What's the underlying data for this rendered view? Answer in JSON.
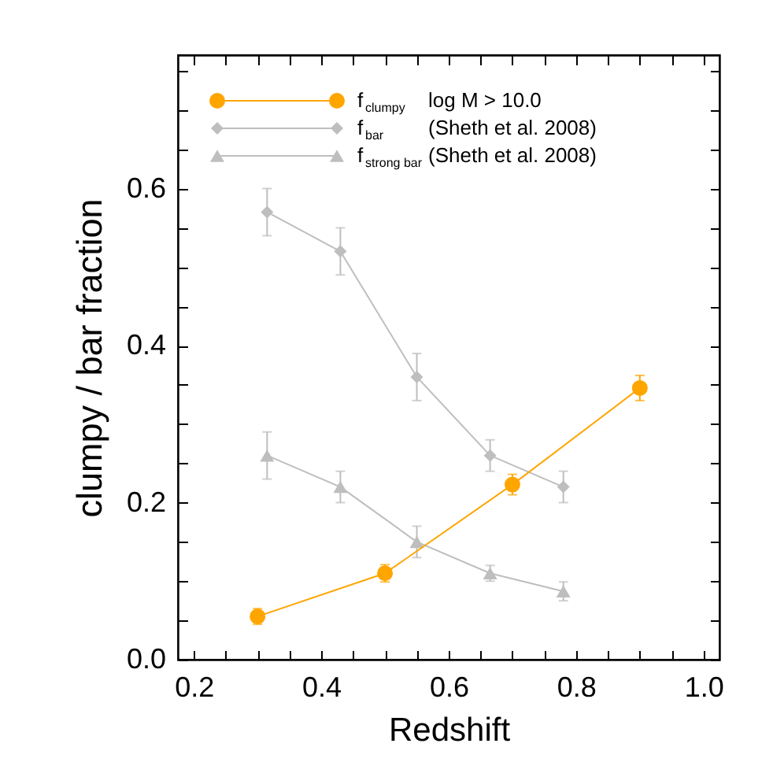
{
  "chart_data": {
    "type": "line",
    "xlabel": "Redshift",
    "ylabel": "clumpy / bar fraction",
    "xlim": [
      0.175,
      1.025
    ],
    "ylim": [
      0,
      0.77
    ],
    "xticks": [
      0.2,
      {
        "value": 0.25,
        "label": null
      },
      {
        "value": 0.3,
        "label": null
      },
      {
        "value": 0.35,
        "label": null
      },
      0.4,
      {
        "value": 0.45,
        "label": null
      },
      {
        "value": 0.5,
        "label": null
      },
      {
        "value": 0.55,
        "label": null
      },
      0.6,
      {
        "value": 0.65,
        "label": null
      },
      {
        "value": 0.7,
        "label": null
      },
      {
        "value": 0.75,
        "label": null
      },
      0.8,
      {
        "value": 0.85,
        "label": null
      },
      {
        "value": 0.9,
        "label": null
      },
      {
        "value": 0.95,
        "label": null
      },
      {
        "value": 1,
        "label": "1.0"
      }
    ],
    "yticks": [
      {
        "value": 0,
        "label": "0.0"
      },
      {
        "value": 0.05,
        "label": null
      },
      {
        "value": 0.1,
        "label": null
      },
      {
        "value": 0.15,
        "label": null
      },
      0.2,
      {
        "value": 0.25,
        "label": null
      },
      {
        "value": 0.3,
        "label": null
      },
      {
        "value": 0.35,
        "label": null
      },
      0.4,
      {
        "value": 0.45,
        "label": null
      },
      {
        "value": 0.5,
        "label": null
      },
      {
        "value": 0.55,
        "label": null
      },
      0.6,
      {
        "value": 0.65,
        "label": null
      },
      {
        "value": 0.7,
        "label": null
      },
      {
        "value": 0.75,
        "label": null
      }
    ],
    "grid": false,
    "legend": "top left",
    "line_style": "solid",
    "series": [
      {
        "name": "f$_{clumpy}$ log M > 10.0",
        "color": "#ffa500",
        "marker": "circle",
        "x": [
          0.3,
          0.5,
          0.7,
          0.9
        ],
        "values": [
          0.055,
          0.11,
          0.223,
          0.346
        ],
        "errors": [
          0.01,
          0.011,
          0.013,
          0.016
        ]
      },
      {
        "name": "f$_{bar}$ (Sheth et al. 2008)",
        "color": "#bebebe",
        "marker": "diamond",
        "x": [
          0.315,
          0.43,
          0.55,
          0.665,
          0.78
        ],
        "values": [
          0.57,
          0.52,
          0.36,
          0.26,
          0.22
        ],
        "errors": [
          0.03,
          0.03,
          0.03,
          0.02,
          0.02
        ]
      },
      {
        "name": "f$_{strong bar}$ (Sheth et al. 2008)",
        "color": "#bebebe",
        "marker": "triangle",
        "x": [
          0.315,
          0.43,
          0.55,
          0.665,
          0.78
        ],
        "values": [
          0.26,
          0.22,
          0.15,
          0.11,
          0.087
        ],
        "errors": [
          0.03,
          0.02,
          0.02,
          0.01,
          0.012
        ]
      }
    ]
  }
}
